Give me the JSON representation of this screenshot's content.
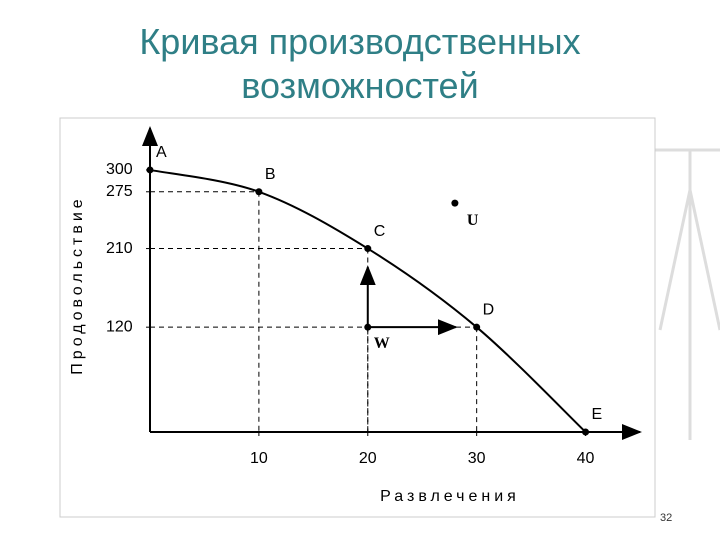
{
  "title": "Кривая производственных возможностей",
  "page_number": "32",
  "chart_data": {
    "type": "line",
    "x": [
      0,
      10,
      20,
      30,
      40
    ],
    "values": [
      300,
      275,
      210,
      120,
      0
    ],
    "point_labels": [
      "A",
      "B",
      "C",
      "D",
      "E"
    ],
    "color": "#000000",
    "extra_points": [
      {
        "label": "U",
        "x": 28,
        "y": 262
      },
      {
        "label": "W",
        "x": 20,
        "y": 120
      }
    ],
    "x_label": "Развлечения",
    "y_label": "Продовольствие",
    "xlim": [
      0,
      45
    ],
    "ylim": [
      0,
      340
    ],
    "xticks": [
      10,
      20,
      30,
      40
    ],
    "yticks": [
      300,
      275,
      210,
      120
    ]
  }
}
